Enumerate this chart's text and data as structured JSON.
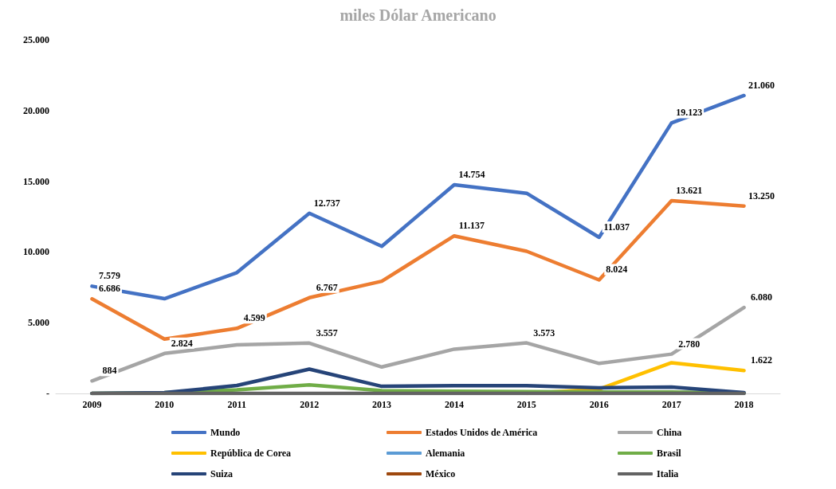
{
  "chart_data": {
    "type": "line",
    "title": "miles Dólar Americano",
    "categories": [
      "2009",
      "2010",
      "2011",
      "2012",
      "2013",
      "2014",
      "2015",
      "2016",
      "2017",
      "2018"
    ],
    "series": [
      {
        "name": "Mundo",
        "color": "#4472c4",
        "values": [
          7579,
          6700,
          8540,
          12737,
          10400,
          14754,
          14150,
          11037,
          19123,
          21060
        ],
        "value_labels": [
          "7.579",
          null,
          null,
          "12.737",
          null,
          "14.754",
          null,
          "11.037",
          "19.123",
          "21.060"
        ]
      },
      {
        "name": "Estados Unidos de América",
        "color": "#ed7d31",
        "values": [
          6686,
          3840,
          4599,
          6767,
          7930,
          11137,
          10050,
          8024,
          13621,
          13250
        ],
        "value_labels": [
          "6.686",
          null,
          "4.599",
          "6.767",
          null,
          "11.137",
          null,
          "8.024",
          "13.621",
          "13.250"
        ]
      },
      {
        "name": "China",
        "color": "#a5a5a5",
        "values": [
          884,
          2824,
          3430,
          3557,
          1870,
          3130,
          3573,
          2120,
          2780,
          6080
        ],
        "value_labels": [
          "884",
          "2.824",
          null,
          "3.557",
          null,
          null,
          "3.573",
          null,
          "2.780",
          "6.080"
        ]
      },
      {
        "name": "República de Corea",
        "color": "#ffc000",
        "values": [
          null,
          null,
          null,
          null,
          null,
          null,
          0,
          300,
          2170,
          1622
        ],
        "value_labels": [
          null,
          null,
          null,
          null,
          null,
          null,
          null,
          null,
          null,
          "1.622"
        ]
      },
      {
        "name": "Alemania",
        "color": "#5b9bd5",
        "values": [
          null,
          null,
          null,
          null,
          null,
          null,
          null,
          null,
          null,
          null
        ]
      },
      {
        "name": "Brasil",
        "color": "#70ad47",
        "values": [
          0,
          50,
          250,
          600,
          200,
          150,
          120,
          100,
          100,
          30
        ]
      },
      {
        "name": "Suiza",
        "color": "#264478",
        "values": [
          0,
          50,
          560,
          1720,
          500,
          550,
          550,
          400,
          450,
          50
        ]
      },
      {
        "name": "México",
        "color": "#9e480e",
        "values": [
          null,
          null,
          null,
          null,
          null,
          null,
          null,
          null,
          null,
          null
        ]
      },
      {
        "name": "Italia",
        "color": "#636363",
        "values": [
          0,
          0,
          0,
          0,
          0,
          0,
          0,
          0,
          0,
          0
        ]
      }
    ],
    "ylim": [
      0,
      25000
    ],
    "yticks": [
      {
        "value": 0,
        "label": "-"
      },
      {
        "value": 5000,
        "label": "5.000"
      },
      {
        "value": 10000,
        "label": "10.000"
      },
      {
        "value": 15000,
        "label": "15.000"
      },
      {
        "value": 20000,
        "label": "20.000"
      },
      {
        "value": 25000,
        "label": "25.000"
      }
    ],
    "grid": false,
    "legend": "bottom",
    "marker": "none",
    "line_style": "solid"
  }
}
